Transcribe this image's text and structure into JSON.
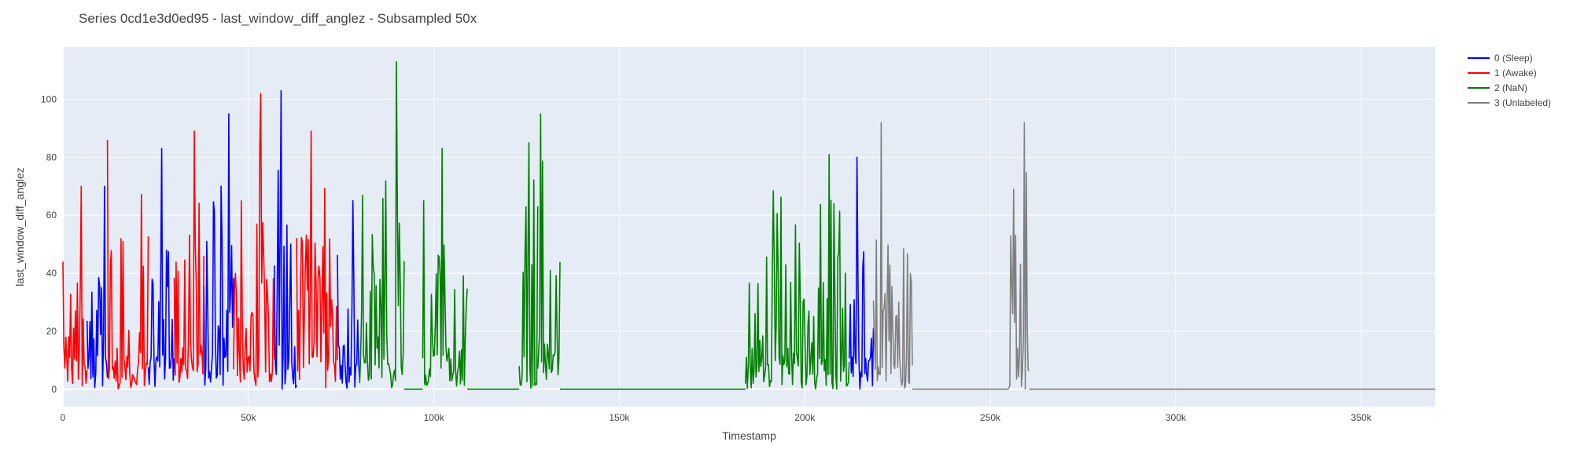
{
  "chart_data": {
    "type": "line",
    "title": "Series 0cd1e3d0ed95 - last_window_diff_anglez - Subsampled 50x",
    "xlabel": "Timestamp",
    "ylabel": "last_window_diff_anglez",
    "xlim": [
      0,
      370000
    ],
    "ylim": [
      -6,
      118
    ],
    "x_ticks": [
      0,
      50000,
      100000,
      150000,
      200000,
      250000,
      300000,
      350000
    ],
    "x_tick_labels": [
      "0",
      "50k",
      "100k",
      "150k",
      "200k",
      "250k",
      "300k",
      "350k"
    ],
    "y_ticks": [
      0,
      20,
      40,
      60,
      80,
      100
    ],
    "y_tick_labels": [
      "0",
      "20",
      "40",
      "60",
      "80",
      "100"
    ],
    "grid": true,
    "legend_position": "top-right",
    "series": [
      {
        "name": "0 (Sleep)",
        "color": "#0000ff",
        "segments": [
          {
            "x_start": 6500,
            "x_end": 12000,
            "peak": 70
          },
          {
            "x_start": 23000,
            "x_end": 30000,
            "peak": 83
          },
          {
            "x_start": 38000,
            "x_end": 46000,
            "peak": 95
          },
          {
            "x_start": 57000,
            "x_end": 63000,
            "peak": 103
          },
          {
            "x_start": 74000,
            "x_end": 80000,
            "peak": 65
          },
          {
            "x_start": 212000,
            "x_end": 218500,
            "peak": 80
          }
        ]
      },
      {
        "name": "1 (Awake)",
        "color": "#ff0000",
        "segments": [
          {
            "x_start": 0,
            "x_end": 6500,
            "peak": 70
          },
          {
            "x_start": 12000,
            "x_end": 23000,
            "peak": 86
          },
          {
            "x_start": 30000,
            "x_end": 38000,
            "peak": 89
          },
          {
            "x_start": 46000,
            "x_end": 57000,
            "peak": 102
          },
          {
            "x_start": 63000,
            "x_end": 74000,
            "peak": 89
          }
        ]
      },
      {
        "name": "2 (NaN)",
        "color": "#008000",
        "segments": [
          {
            "x_start": 80000,
            "x_end": 92000,
            "peak": 113
          },
          {
            "x_start": 92000,
            "x_end": 97000,
            "flat": 0
          },
          {
            "x_start": 97000,
            "x_end": 109000,
            "peak": 83
          },
          {
            "x_start": 109000,
            "x_end": 123000,
            "flat": 0
          },
          {
            "x_start": 123000,
            "x_end": 128000,
            "peak": 85
          },
          {
            "x_start": 128000,
            "x_end": 134000,
            "peak": 95
          },
          {
            "x_start": 134000,
            "x_end": 184000,
            "flat": 0
          },
          {
            "x_start": 184000,
            "x_end": 212000,
            "peak": 81
          }
        ]
      },
      {
        "name": "3 (Unlabeled)",
        "color": "#808080",
        "segments": [
          {
            "x_start": 218500,
            "x_end": 229000,
            "peak": 92
          },
          {
            "x_start": 229000,
            "x_end": 255000,
            "flat": 0
          },
          {
            "x_start": 255000,
            "x_end": 260500,
            "peak": 92
          },
          {
            "x_start": 260500,
            "x_end": 370000,
            "flat": 0
          }
        ]
      }
    ]
  }
}
